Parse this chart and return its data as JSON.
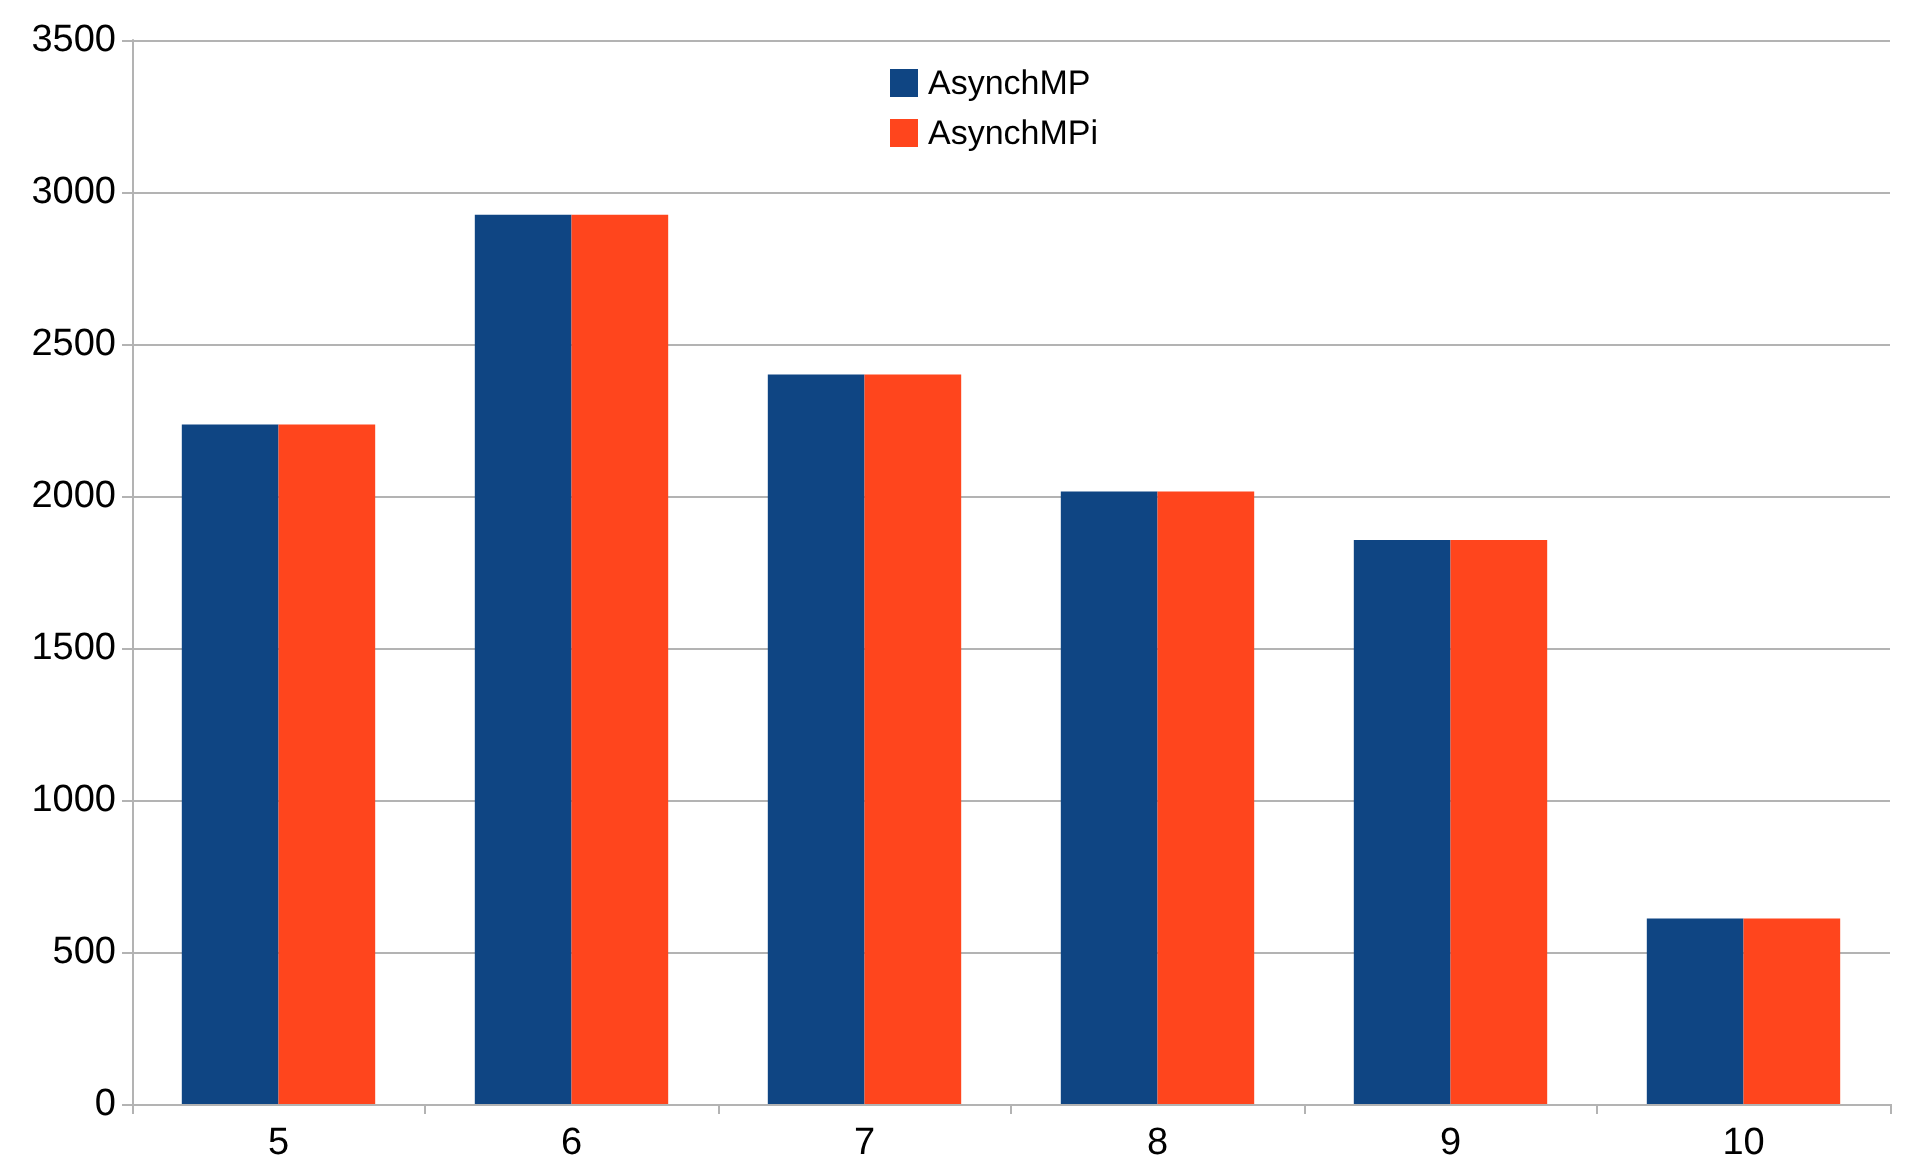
{
  "chart_data": {
    "type": "bar",
    "categories": [
      "5",
      "6",
      "7",
      "8",
      "9",
      "10"
    ],
    "series": [
      {
        "name": "AsynchMP",
        "color": "#0f4583",
        "values": [
          2235,
          2925,
          2400,
          2015,
          1855,
          610
        ]
      },
      {
        "name": "AsynchMPi",
        "color": "#ff451d",
        "values": [
          2235,
          2925,
          2400,
          2015,
          1855,
          610
        ]
      }
    ],
    "ylim": [
      0,
      3500
    ],
    "yticks": [
      0,
      500,
      1000,
      1500,
      2000,
      2500,
      3000,
      3500
    ],
    "grid": "y",
    "legend": "top"
  }
}
